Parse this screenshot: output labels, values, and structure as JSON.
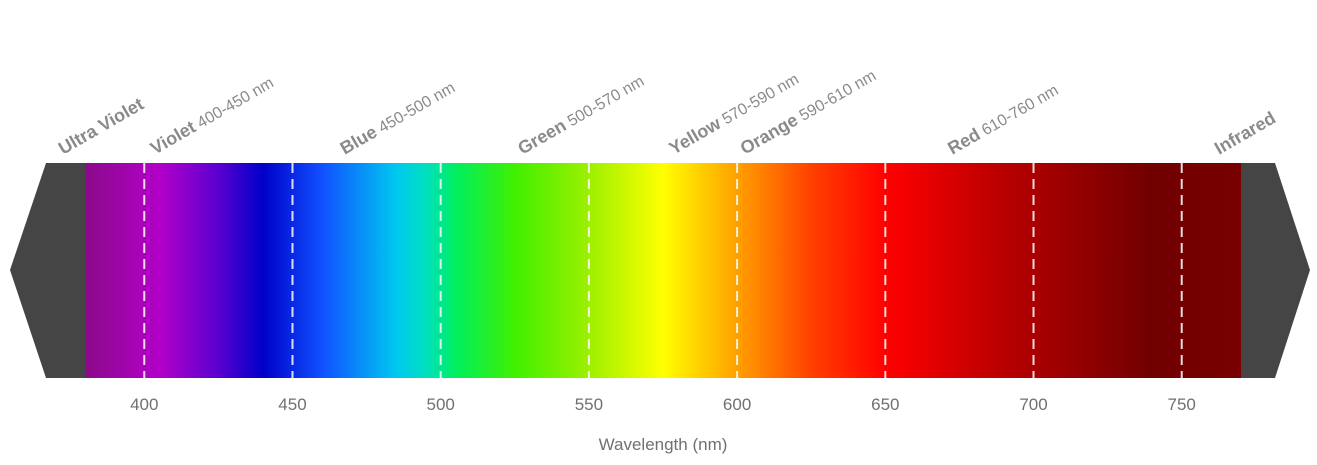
{
  "chart_data": {
    "type": "diagram",
    "xlabel": "Wavelength (nm)",
    "x_ticks": [
      400,
      450,
      500,
      550,
      600,
      650,
      700,
      750
    ],
    "visible_range_nm": [
      380,
      770
    ],
    "bands": [
      {
        "bold": "Ultra Violet",
        "range": "",
        "x_nm": 380
      },
      {
        "bold": "Violet",
        "range": " 400-450 nm",
        "x_nm": 411
      },
      {
        "bold": "Blue",
        "range": " 450-500 nm",
        "x_nm": 475
      },
      {
        "bold": "Green",
        "range": " 500-570 nm",
        "x_nm": 535
      },
      {
        "bold": "Yellow",
        "range": " 570-590 nm",
        "x_nm": 586
      },
      {
        "bold": "Orange",
        "range": " 590-610 nm",
        "x_nm": 610
      },
      {
        "bold": "Red",
        "range": " 610-760 nm",
        "x_nm": 680
      },
      {
        "bold": "Infrared",
        "range": "",
        "x_nm": 770
      }
    ],
    "colors": {
      "end_caps": "#454545",
      "tick_labels": "#707070",
      "band_labels": "#8a8a8a",
      "gridlines": "#ffffff"
    },
    "gradient_stops": [
      {
        "nm": 380,
        "color": "#8a0a8a"
      },
      {
        "nm": 405,
        "color": "#b300c8"
      },
      {
        "nm": 425,
        "color": "#5a00d0"
      },
      {
        "nm": 440,
        "color": "#0000c8"
      },
      {
        "nm": 460,
        "color": "#1050ff"
      },
      {
        "nm": 485,
        "color": "#00c8f0"
      },
      {
        "nm": 495,
        "color": "#00e0c0"
      },
      {
        "nm": 505,
        "color": "#00ee60"
      },
      {
        "nm": 525,
        "color": "#40f000"
      },
      {
        "nm": 550,
        "color": "#9cf000"
      },
      {
        "nm": 575,
        "color": "#ffff00"
      },
      {
        "nm": 600,
        "color": "#ffa000"
      },
      {
        "nm": 625,
        "color": "#ff4000"
      },
      {
        "nm": 650,
        "color": "#ff0000"
      },
      {
        "nm": 690,
        "color": "#b80000"
      },
      {
        "nm": 740,
        "color": "#700000"
      },
      {
        "nm": 770,
        "color": "#780000"
      }
    ]
  }
}
